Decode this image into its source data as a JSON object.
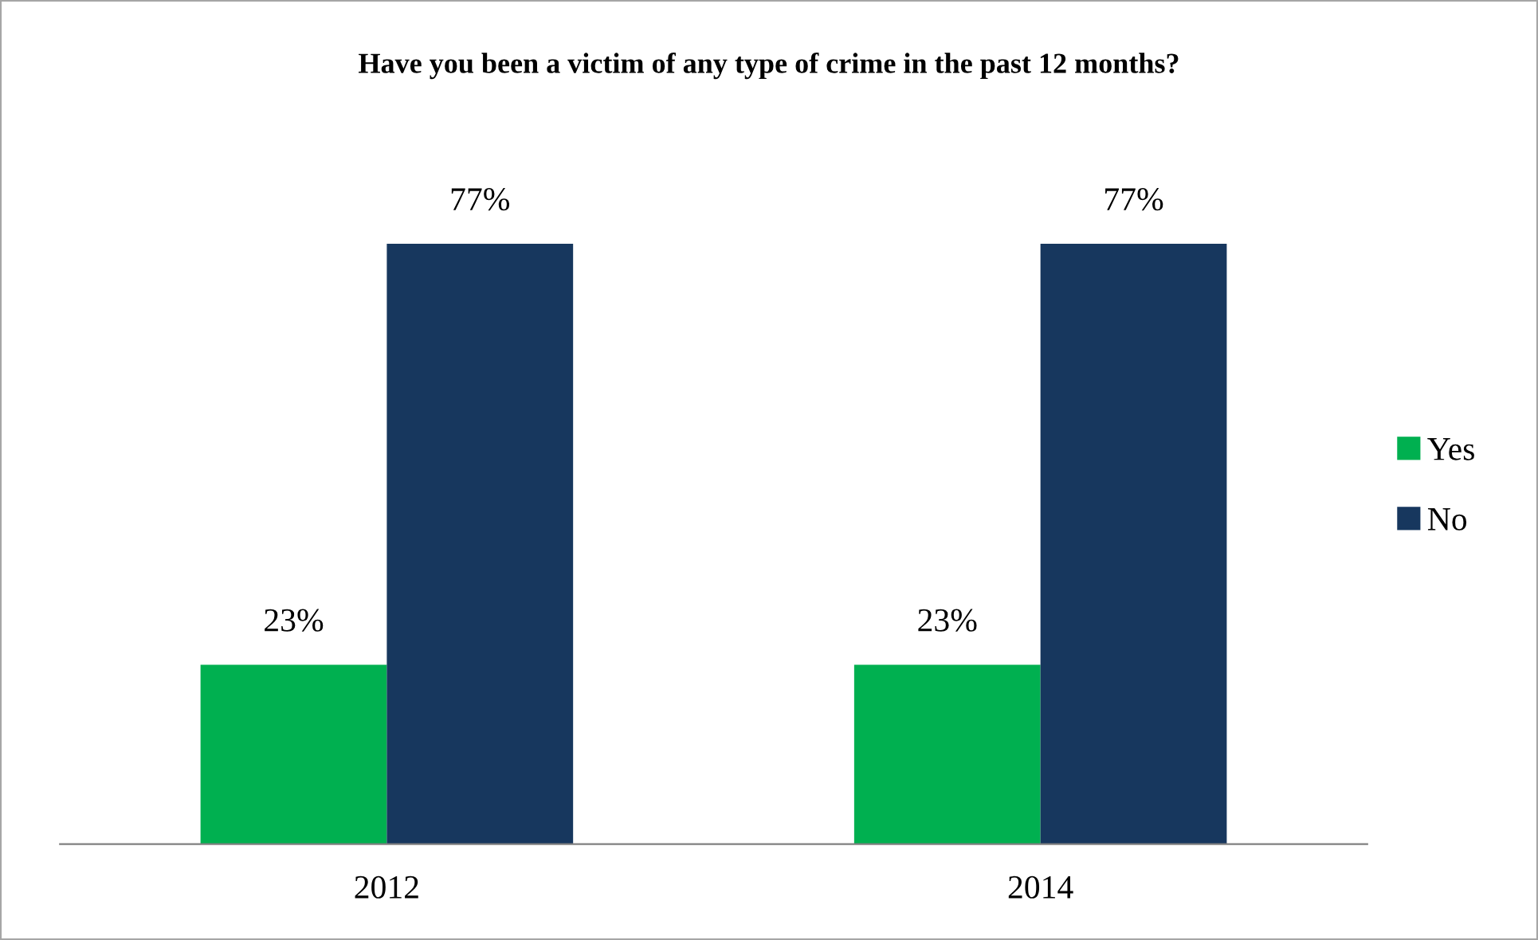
{
  "chart_data": {
    "type": "bar",
    "title": "Have you been a victim of any type of crime in the past 12 months?",
    "categories": [
      "2012",
      "2014"
    ],
    "series": [
      {
        "name": "Yes",
        "color": "#00b050",
        "values": [
          23,
          23
        ],
        "value_labels": [
          "23%",
          "23%"
        ]
      },
      {
        "name": "No",
        "color": "#17375e",
        "values": [
          77,
          77
        ],
        "value_labels": [
          "77%",
          "77%"
        ]
      }
    ],
    "legend": "right",
    "grid": false
  }
}
